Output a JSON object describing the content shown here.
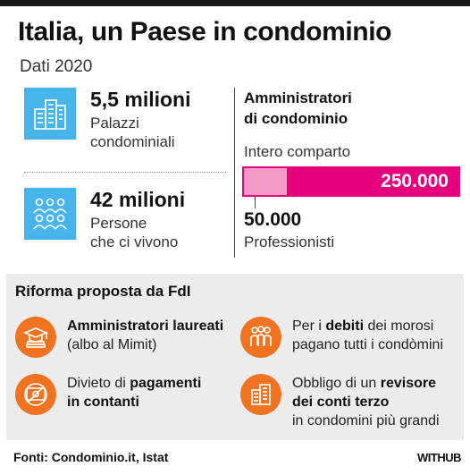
{
  "header": {
    "title": "Italia, un Paese in condominio",
    "subtitle": "Dati 2020"
  },
  "stats": {
    "buildings": {
      "value": "5,5 milioni",
      "line1": "Palazzi",
      "line2": "condominiali",
      "icon": "buildings-icon"
    },
    "people": {
      "value": "42 milioni",
      "line1": "Persone",
      "line2": "che ci vivono",
      "icon": "people-group-icon"
    }
  },
  "admins": {
    "heading_line1": "Amministratori",
    "heading_line2": "di condominio",
    "total_label": "Intero comparto",
    "total_value": "250.000",
    "pro_value": "50.000",
    "pro_label": "Professionisti",
    "pro_share": 0.2
  },
  "reform": {
    "title": "Riforma proposta da FdI",
    "items": [
      {
        "icon": "graduation-cap-icon",
        "bold": "Amministratori laureati",
        "rest": "(albo al Mimit)"
      },
      {
        "icon": "people-icon",
        "pre": "Per i ",
        "bold": "debiti",
        "post": " dei morosi",
        "line2": "pagano tutti i condòmini"
      },
      {
        "icon": "no-cash-icon",
        "pre": "Divieto di ",
        "bold": "pagamenti",
        "line2": "in contanti"
      },
      {
        "icon": "building-icon",
        "pre": "Obbligo di un ",
        "bold": "revisore",
        "line2": "dei conti terzo",
        "line3": "in condomini più grandi"
      }
    ]
  },
  "footer": {
    "source": "Fonti: Condominio.it, Istat",
    "brand": "WITHUB"
  },
  "colors": {
    "blue": "#48b4ec",
    "magenta": "#e5007d",
    "pink": "#f29ac5",
    "orange": "#f07321",
    "panel": "#ececec"
  }
}
